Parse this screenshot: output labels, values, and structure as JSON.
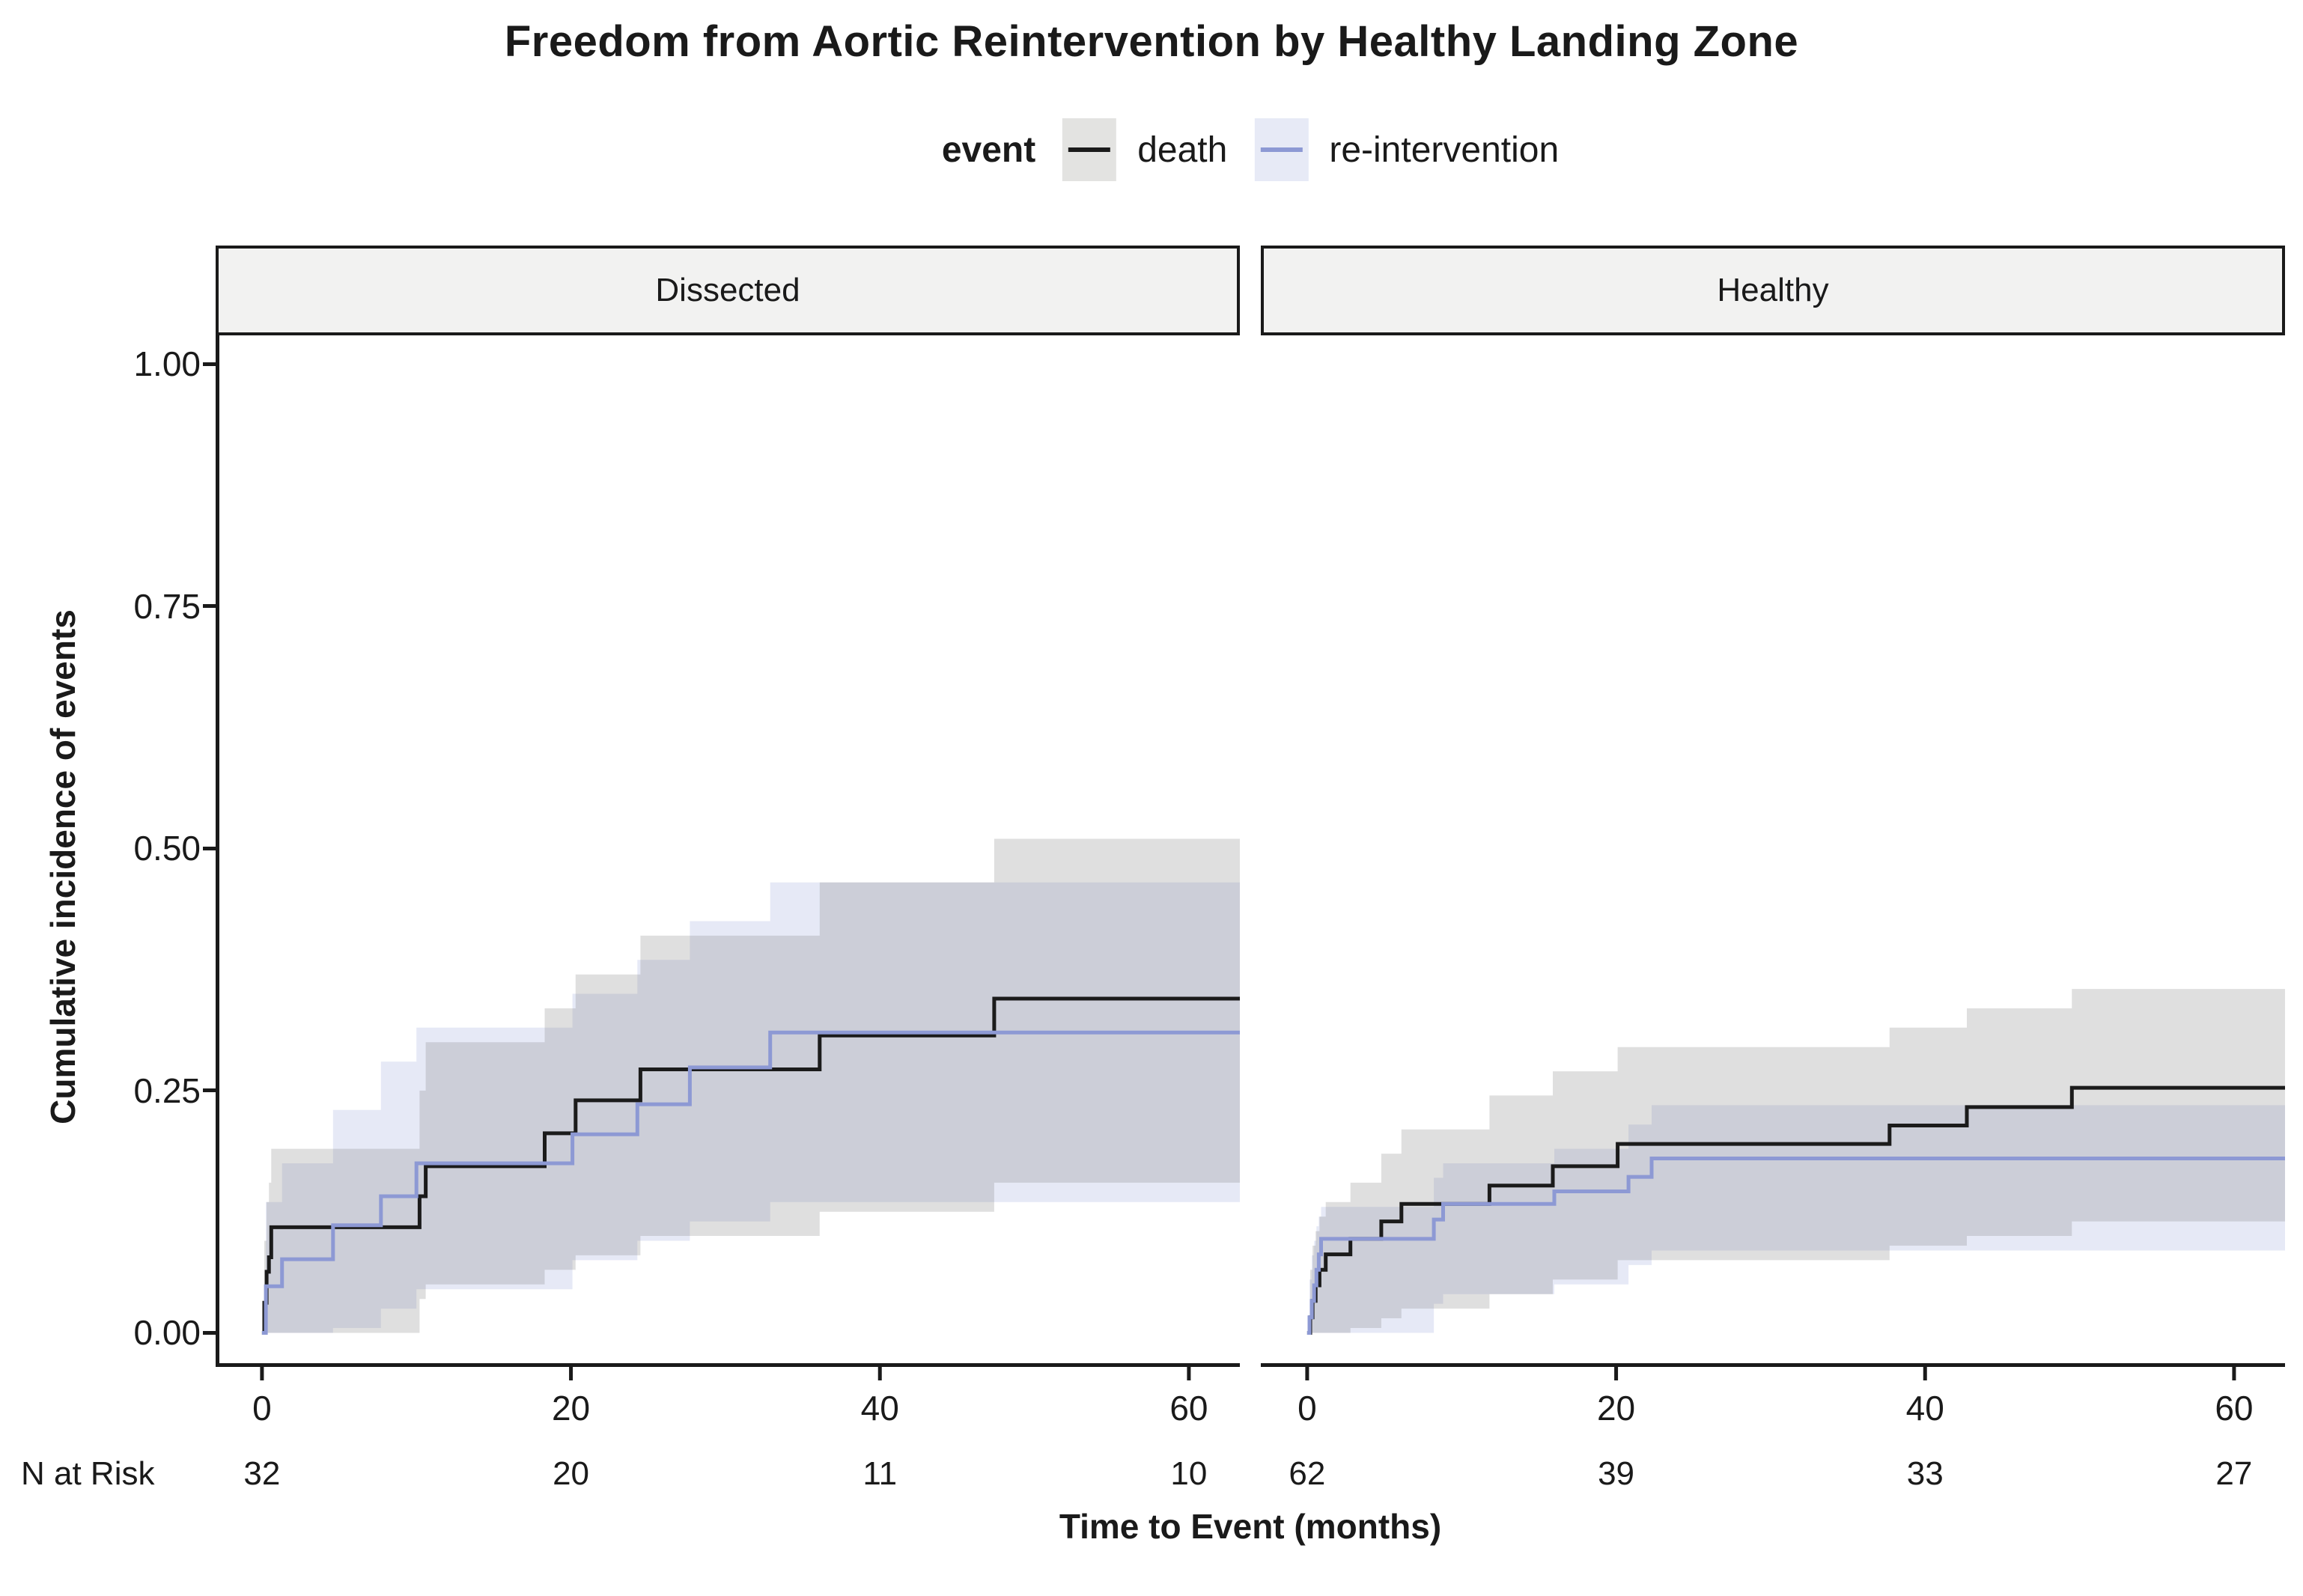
{
  "title": "Freedom from Aortic Reintervention by Healthy Landing Zone",
  "legend": {
    "label": "event",
    "items": [
      {
        "label": "death",
        "line_color": "#1b1b1b",
        "swatch_color": "#e3e3e1"
      },
      {
        "label": "re-intervention",
        "line_color": "#8d99d4",
        "swatch_color": "#e7eaf6"
      }
    ]
  },
  "axes": {
    "y_title": "Cumulative incidence of events",
    "x_title": "Time to Event (months)",
    "y_ticks": [
      {
        "label": "0.00",
        "v": 0
      },
      {
        "label": "0.25",
        "v": 0.25
      },
      {
        "label": "0.50",
        "v": 0.5
      },
      {
        "label": "0.75",
        "v": 0.75
      },
      {
        "label": "1.00",
        "v": 1
      }
    ],
    "x_ticks": [
      {
        "label": "0",
        "t": 0
      },
      {
        "label": "20",
        "t": 20
      },
      {
        "label": "40",
        "t": 40
      },
      {
        "label": "60",
        "t": 60
      }
    ]
  },
  "risk_table": {
    "label": "N at Risk",
    "columns_t": [
      0,
      20,
      40,
      60
    ]
  },
  "chart_data": {
    "type": "line",
    "subtype": "step-cumulative-incidence",
    "title": "Freedom from Aortic Reintervention by Healthy Landing Zone",
    "xlabel": "Time to Event (months)",
    "ylabel": "Cumulative incidence of events",
    "xlim": [
      0,
      63
    ],
    "ylim": [
      0,
      1
    ],
    "grid": false,
    "legend_position": "top",
    "facets": [
      {
        "label": "Dissected",
        "n_at_risk": [
          32,
          20,
          11,
          10
        ],
        "series": [
          {
            "name": "death",
            "color": "#1b1b1b",
            "band_color": "#7f7f7f",
            "band_opacity": 0.25,
            "steps": [
              [
                0,
                0
              ],
              [
                0.15,
                0.031
              ],
              [
                0.3,
                0.063
              ],
              [
                0.45,
                0.078
              ],
              [
                0.6,
                0.109
              ],
              [
                10.2,
                0.141
              ],
              [
                10.6,
                0.172
              ],
              [
                18.3,
                0.206
              ],
              [
                20.3,
                0.24
              ],
              [
                24.5,
                0.272
              ],
              [
                36.1,
                0.307
              ],
              [
                47.4,
                0.345
              ]
            ],
            "band": [
              [
                0.15,
                0,
                0.095
              ],
              [
                0.3,
                0,
                0.135
              ],
              [
                0.45,
                0,
                0.155
              ],
              [
                0.6,
                0,
                0.19
              ],
              [
                10.2,
                0.035,
                0.25
              ],
              [
                10.6,
                0.05,
                0.3
              ],
              [
                18.3,
                0.065,
                0.335
              ],
              [
                20.3,
                0.08,
                0.37
              ],
              [
                24.5,
                0.1,
                0.41
              ],
              [
                36.1,
                0.125,
                0.465
              ],
              [
                47.4,
                0.155,
                0.51
              ]
            ]
          },
          {
            "name": "re-intervention",
            "color": "#8d99d4",
            "band_color": "#8d99d4",
            "band_opacity": 0.22,
            "steps": [
              [
                0,
                0
              ],
              [
                0.25,
                0.048
              ],
              [
                1.3,
                0.076
              ],
              [
                4.6,
                0.111
              ],
              [
                7.7,
                0.141
              ],
              [
                10,
                0.175
              ],
              [
                20.1,
                0.205
              ],
              [
                24.3,
                0.236
              ],
              [
                27.7,
                0.274
              ],
              [
                32.9,
                0.31
              ]
            ],
            "band": [
              [
                0.25,
                0,
                0.135
              ],
              [
                1.3,
                0,
                0.175
              ],
              [
                4.6,
                0.005,
                0.23
              ],
              [
                7.7,
                0.025,
                0.28
              ],
              [
                10,
                0.045,
                0.315
              ],
              [
                20.1,
                0.075,
                0.35
              ],
              [
                24.3,
                0.095,
                0.385
              ],
              [
                27.7,
                0.115,
                0.425
              ],
              [
                32.9,
                0.135,
                0.465
              ]
            ]
          }
        ]
      },
      {
        "label": "Healthy",
        "n_at_risk": [
          62,
          39,
          33,
          27
        ],
        "series": [
          {
            "name": "death",
            "color": "#1b1b1b",
            "band_color": "#7f7f7f",
            "band_opacity": 0.25,
            "steps": [
              [
                0,
                0
              ],
              [
                0.2,
                0.016
              ],
              [
                0.35,
                0.033
              ],
              [
                0.55,
                0.049
              ],
              [
                0.8,
                0.065
              ],
              [
                1.2,
                0.081
              ],
              [
                2.8,
                0.097
              ],
              [
                4.8,
                0.115
              ],
              [
                6.1,
                0.133
              ],
              [
                11.8,
                0.152
              ],
              [
                15.9,
                0.172
              ],
              [
                20.1,
                0.195
              ],
              [
                37.7,
                0.214
              ],
              [
                42.7,
                0.233
              ],
              [
                49.5,
                0.253
              ]
            ],
            "band": [
              [
                0.2,
                0,
                0.065
              ],
              [
                0.35,
                0,
                0.09
              ],
              [
                0.55,
                0,
                0.105
              ],
              [
                0.8,
                0,
                0.12
              ],
              [
                1.2,
                0,
                0.135
              ],
              [
                2.8,
                0.005,
                0.155
              ],
              [
                4.8,
                0.015,
                0.185
              ],
              [
                6.1,
                0.025,
                0.21
              ],
              [
                11.8,
                0.04,
                0.245
              ],
              [
                15.9,
                0.055,
                0.27
              ],
              [
                20.1,
                0.075,
                0.295
              ],
              [
                37.7,
                0.09,
                0.315
              ],
              [
                42.7,
                0.1,
                0.335
              ],
              [
                49.5,
                0.115,
                0.355
              ]
            ]
          },
          {
            "name": "re-intervention",
            "color": "#8d99d4",
            "band_color": "#8d99d4",
            "band_opacity": 0.22,
            "steps": [
              [
                0,
                0
              ],
              [
                0.15,
                0.016
              ],
              [
                0.3,
                0.033
              ],
              [
                0.45,
                0.049
              ],
              [
                0.6,
                0.065
              ],
              [
                0.75,
                0.081
              ],
              [
                0.9,
                0.097
              ],
              [
                8.2,
                0.117
              ],
              [
                8.8,
                0.133
              ],
              [
                16,
                0.146
              ],
              [
                20.8,
                0.161
              ],
              [
                22.3,
                0.18
              ]
            ],
            "band": [
              [
                0.15,
                0,
                0.055
              ],
              [
                0.3,
                0,
                0.08
              ],
              [
                0.45,
                0,
                0.095
              ],
              [
                0.6,
                0,
                0.11
              ],
              [
                0.75,
                0,
                0.12
              ],
              [
                0.9,
                0,
                0.13
              ],
              [
                8.2,
                0.03,
                0.16
              ],
              [
                8.8,
                0.04,
                0.175
              ],
              [
                16,
                0.05,
                0.19
              ],
              [
                20.8,
                0.07,
                0.215
              ],
              [
                22.3,
                0.085,
                0.235
              ]
            ]
          }
        ]
      }
    ]
  }
}
